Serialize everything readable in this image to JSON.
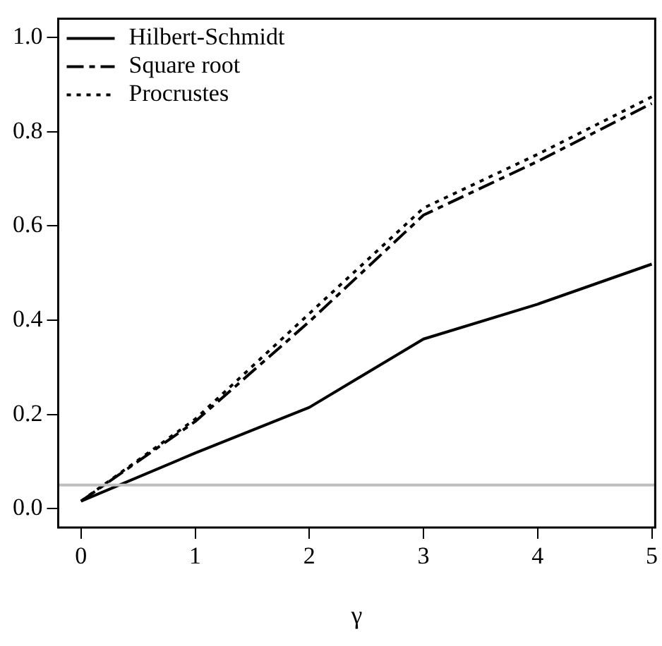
{
  "chart_data": {
    "type": "line",
    "xlabel": "γ",
    "x": [
      0,
      1,
      2,
      3,
      4,
      5
    ],
    "series": [
      {
        "name": "Hilbert-Schmidt",
        "color": "#000000",
        "line_style": "solid",
        "values": [
          0.016,
          0.118,
          0.215,
          0.36,
          0.434,
          0.519
        ]
      },
      {
        "name": "Square root",
        "color": "#000000",
        "line_style": "dashed",
        "values": [
          0.016,
          0.185,
          0.397,
          0.623,
          0.737,
          0.86
        ]
      },
      {
        "name": "Procrustes",
        "color": "#000000",
        "line_style": "dotted",
        "values": [
          0.016,
          0.19,
          0.414,
          0.638,
          0.752,
          0.874
        ]
      }
    ],
    "xlim": [
      -0.2,
      5.03
    ],
    "xticks": [
      0,
      1,
      2,
      3,
      4,
      5
    ],
    "ylim": [
      -0.04,
      1.04
    ],
    "yticks": [
      {
        "value": 0,
        "label": "0.0"
      },
      {
        "value": 0.2,
        "label": "0.2"
      },
      {
        "value": 0.4,
        "label": "0.4"
      },
      {
        "value": 0.6,
        "label": "0.6"
      },
      {
        "value": 0.8,
        "label": "0.8"
      },
      {
        "value": 1,
        "label": "1.0"
      }
    ],
    "ref_lines": [
      {
        "axis": "y",
        "value": 0.05,
        "color": "#bebebe"
      }
    ],
    "grid": false,
    "legend": "top left",
    "marker": "none"
  }
}
